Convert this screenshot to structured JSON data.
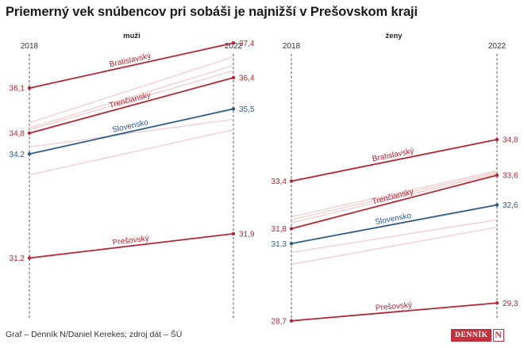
{
  "title": "Priemerný vek snúbencov pri sobáši je najnižší v Prešovskom kraji",
  "footer": "Graf – Denník N/Daniel Kerekes; zdroj dát – ŠÚ",
  "logo": {
    "text": "DENNÍK",
    "mark": "N"
  },
  "colors": {
    "highlight": "#b72434",
    "national": "#2c5a8c",
    "faint": "#f2cccc",
    "axis": "#444444"
  },
  "chart_data": [
    {
      "type": "line",
      "subtitle": "muži",
      "x": [
        "2018",
        "2022"
      ],
      "ylim": [
        30.0,
        38.0
      ],
      "series": [
        {
          "name": "Bratislavský",
          "values": [
            36.1,
            37.4
          ],
          "highlight": true,
          "start_label": "36,1",
          "end_label": "37,4"
        },
        {
          "name": "Trenčiansky",
          "values": [
            34.8,
            36.4
          ],
          "highlight": true,
          "start_label": "34,8",
          "end_label": "36,4"
        },
        {
          "name": "Slovensko",
          "values": [
            34.2,
            35.5
          ],
          "national": true,
          "start_label": "34,2",
          "end_label": "35,5"
        },
        {
          "name": "Prešovský",
          "values": [
            31.2,
            31.9
          ],
          "highlight": true,
          "start_label": "31,2",
          "end_label": "31,9"
        },
        {
          "values": [
            35.1,
            37.0
          ]
        },
        {
          "values": [
            34.95,
            36.75
          ]
        },
        {
          "values": [
            34.9,
            36.6
          ]
        },
        {
          "values": [
            34.4,
            35.2
          ]
        },
        {
          "values": [
            33.6,
            34.9
          ]
        }
      ]
    },
    {
      "type": "line",
      "subtitle": "ženy",
      "x": [
        "2018",
        "2022"
      ],
      "ylim": [
        28.0,
        36.0
      ],
      "series": [
        {
          "name": "Bratislavský",
          "values": [
            33.4,
            34.8
          ],
          "highlight": true,
          "start_label": "33,4",
          "end_label": "34,8"
        },
        {
          "name": "Trenčiansky",
          "values": [
            31.8,
            33.6
          ],
          "highlight": true,
          "start_label": "31,8",
          "end_label": "33,6"
        },
        {
          "name": "Slovensko",
          "values": [
            31.3,
            32.6
          ],
          "national": true,
          "start_label": "31,3",
          "end_label": "32,6"
        },
        {
          "name": "Prešovský",
          "values": [
            28.7,
            29.3
          ],
          "highlight": true,
          "start_label": "28,7",
          "end_label": "29,3"
        },
        {
          "values": [
            32.2,
            33.75
          ]
        },
        {
          "values": [
            32.1,
            33.7
          ]
        },
        {
          "values": [
            32.0,
            33.65
          ]
        },
        {
          "values": [
            31.0,
            32.1
          ]
        },
        {
          "values": [
            30.6,
            31.85
          ]
        }
      ]
    }
  ]
}
